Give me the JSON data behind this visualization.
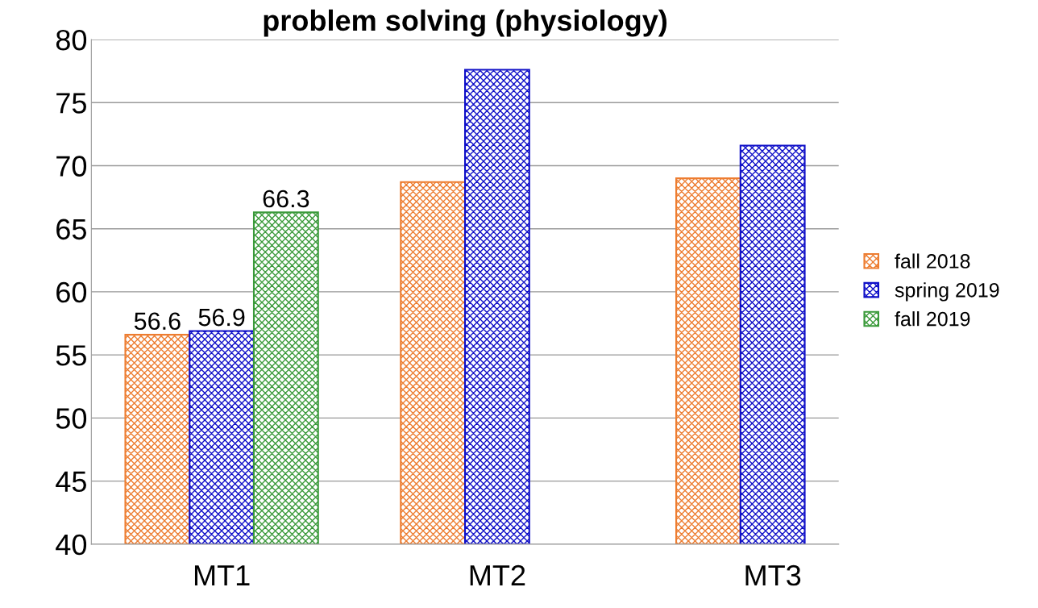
{
  "chart_data": {
    "type": "bar",
    "title": "problem solving (physiology)",
    "categories": [
      "MT1",
      "MT2",
      "MT3"
    ],
    "series": [
      {
        "name": "fall 2018",
        "color": "#ed7d31",
        "values": [
          56.6,
          68.7,
          69.0
        ],
        "value_labels": [
          "56.6",
          null,
          null
        ]
      },
      {
        "name": "spring 2019",
        "color": "#1010c8",
        "values": [
          56.9,
          77.6,
          71.6
        ],
        "value_labels": [
          "56.9",
          null,
          null
        ]
      },
      {
        "name": "fall 2019",
        "color": "#3a9a3a",
        "values": [
          66.3,
          null,
          null
        ],
        "value_labels": [
          "66.3",
          null,
          null
        ]
      }
    ],
    "ylim": [
      40,
      80
    ],
    "yticks": [
      40,
      45,
      50,
      55,
      60,
      65,
      70,
      75,
      80
    ],
    "grid": "y",
    "legend": "right"
  }
}
